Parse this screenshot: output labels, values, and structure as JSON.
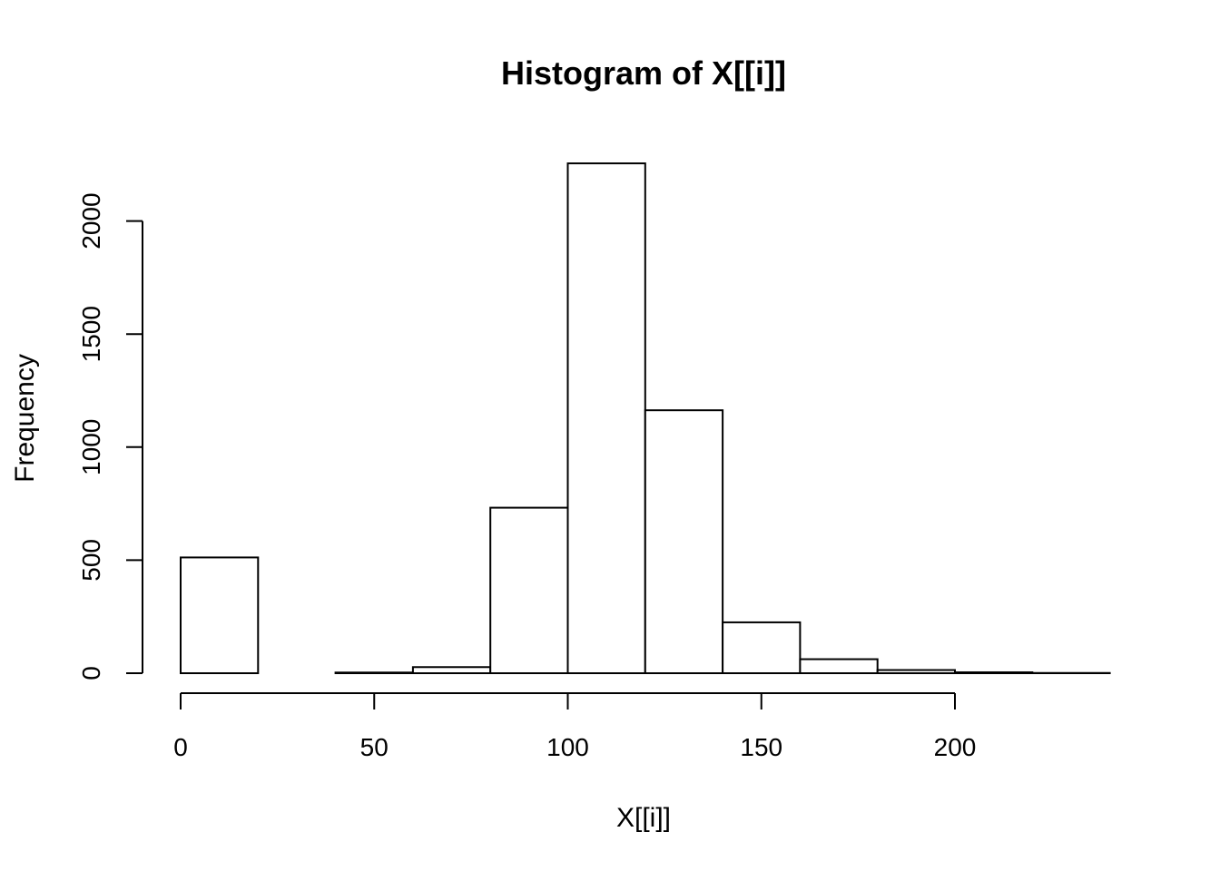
{
  "chart_data": {
    "type": "bar",
    "title": "Histogram of X[[i]]",
    "xlabel": "X[[i]]",
    "ylabel": "Frequency",
    "xlim": [
      0,
      240
    ],
    "ylim": [
      0,
      2250
    ],
    "x_ticks": [
      0,
      50,
      100,
      150,
      200
    ],
    "y_ticks": [
      0,
      500,
      1000,
      1500,
      2000
    ],
    "bins": [
      {
        "start": 0,
        "end": 20,
        "count": 512
      },
      {
        "start": 20,
        "end": 40,
        "count": 0
      },
      {
        "start": 40,
        "end": 60,
        "count": 3
      },
      {
        "start": 60,
        "end": 80,
        "count": 27
      },
      {
        "start": 80,
        "end": 100,
        "count": 732
      },
      {
        "start": 100,
        "end": 120,
        "count": 2255
      },
      {
        "start": 120,
        "end": 140,
        "count": 1163
      },
      {
        "start": 140,
        "end": 160,
        "count": 225
      },
      {
        "start": 160,
        "end": 180,
        "count": 62
      },
      {
        "start": 180,
        "end": 200,
        "count": 14
      },
      {
        "start": 200,
        "end": 220,
        "count": 4
      },
      {
        "start": 220,
        "end": 240,
        "count": 1
      }
    ],
    "grid": false,
    "legend": "none"
  }
}
